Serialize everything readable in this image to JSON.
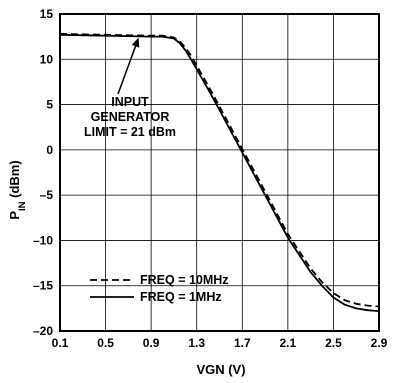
{
  "chart_data": {
    "type": "line",
    "xlabel": "VGN (V)",
    "ylabel_main": "P",
    "ylabel_sub": "IN",
    "ylabel_unit": " (dBm)",
    "xlim": [
      0.1,
      2.9
    ],
    "ylim": [
      -20,
      15
    ],
    "x_ticks": [
      0.1,
      0.5,
      0.9,
      1.3,
      1.7,
      2.1,
      2.5,
      2.9
    ],
    "x_tick_labels": [
      "0.1",
      "0.5",
      "0.9",
      "1.3",
      "1.7",
      "2.1",
      "2.5",
      "2.9"
    ],
    "y_ticks": [
      15,
      10,
      5,
      0,
      -5,
      -10,
      -15,
      -20
    ],
    "y_tick_labels": [
      "15",
      "10",
      "5",
      "0",
      "–5",
      "–10",
      "–15",
      "–20"
    ],
    "grid": true,
    "legend_position": "bottom-left",
    "annotation": {
      "lines": [
        "INPUT",
        "GENERATOR",
        "LIMIT = 21 dBm"
      ],
      "arrow_target": [
        0.79,
        12.6
      ]
    },
    "series": [
      {
        "name": "FREQ = 10MHz",
        "style": "dashed",
        "x": [
          0.1,
          0.5,
          0.9,
          1.0,
          1.1,
          1.15,
          1.2,
          1.25,
          1.3,
          1.4,
          1.5,
          1.7,
          1.9,
          2.1,
          2.3,
          2.4,
          2.5,
          2.6,
          2.7,
          2.8,
          2.9
        ],
        "y": [
          12.8,
          12.7,
          12.6,
          12.6,
          12.4,
          12.0,
          11.3,
          10.4,
          9.3,
          7.1,
          4.8,
          0.1,
          -4.6,
          -9.3,
          -13.1,
          -14.6,
          -15.8,
          -16.6,
          -17.0,
          -17.2,
          -17.3
        ]
      },
      {
        "name": "FREQ = 1MHz",
        "style": "solid",
        "x": [
          0.1,
          0.5,
          0.9,
          1.0,
          1.1,
          1.15,
          1.2,
          1.25,
          1.3,
          1.4,
          1.5,
          1.7,
          1.9,
          2.1,
          2.3,
          2.4,
          2.5,
          2.6,
          2.7,
          2.8,
          2.9
        ],
        "y": [
          12.7,
          12.6,
          12.5,
          12.5,
          12.3,
          11.8,
          11.0,
          10.0,
          8.9,
          6.7,
          4.4,
          -0.3,
          -5.0,
          -9.7,
          -13.5,
          -15.0,
          -16.3,
          -17.1,
          -17.5,
          -17.7,
          -17.8
        ]
      }
    ]
  }
}
